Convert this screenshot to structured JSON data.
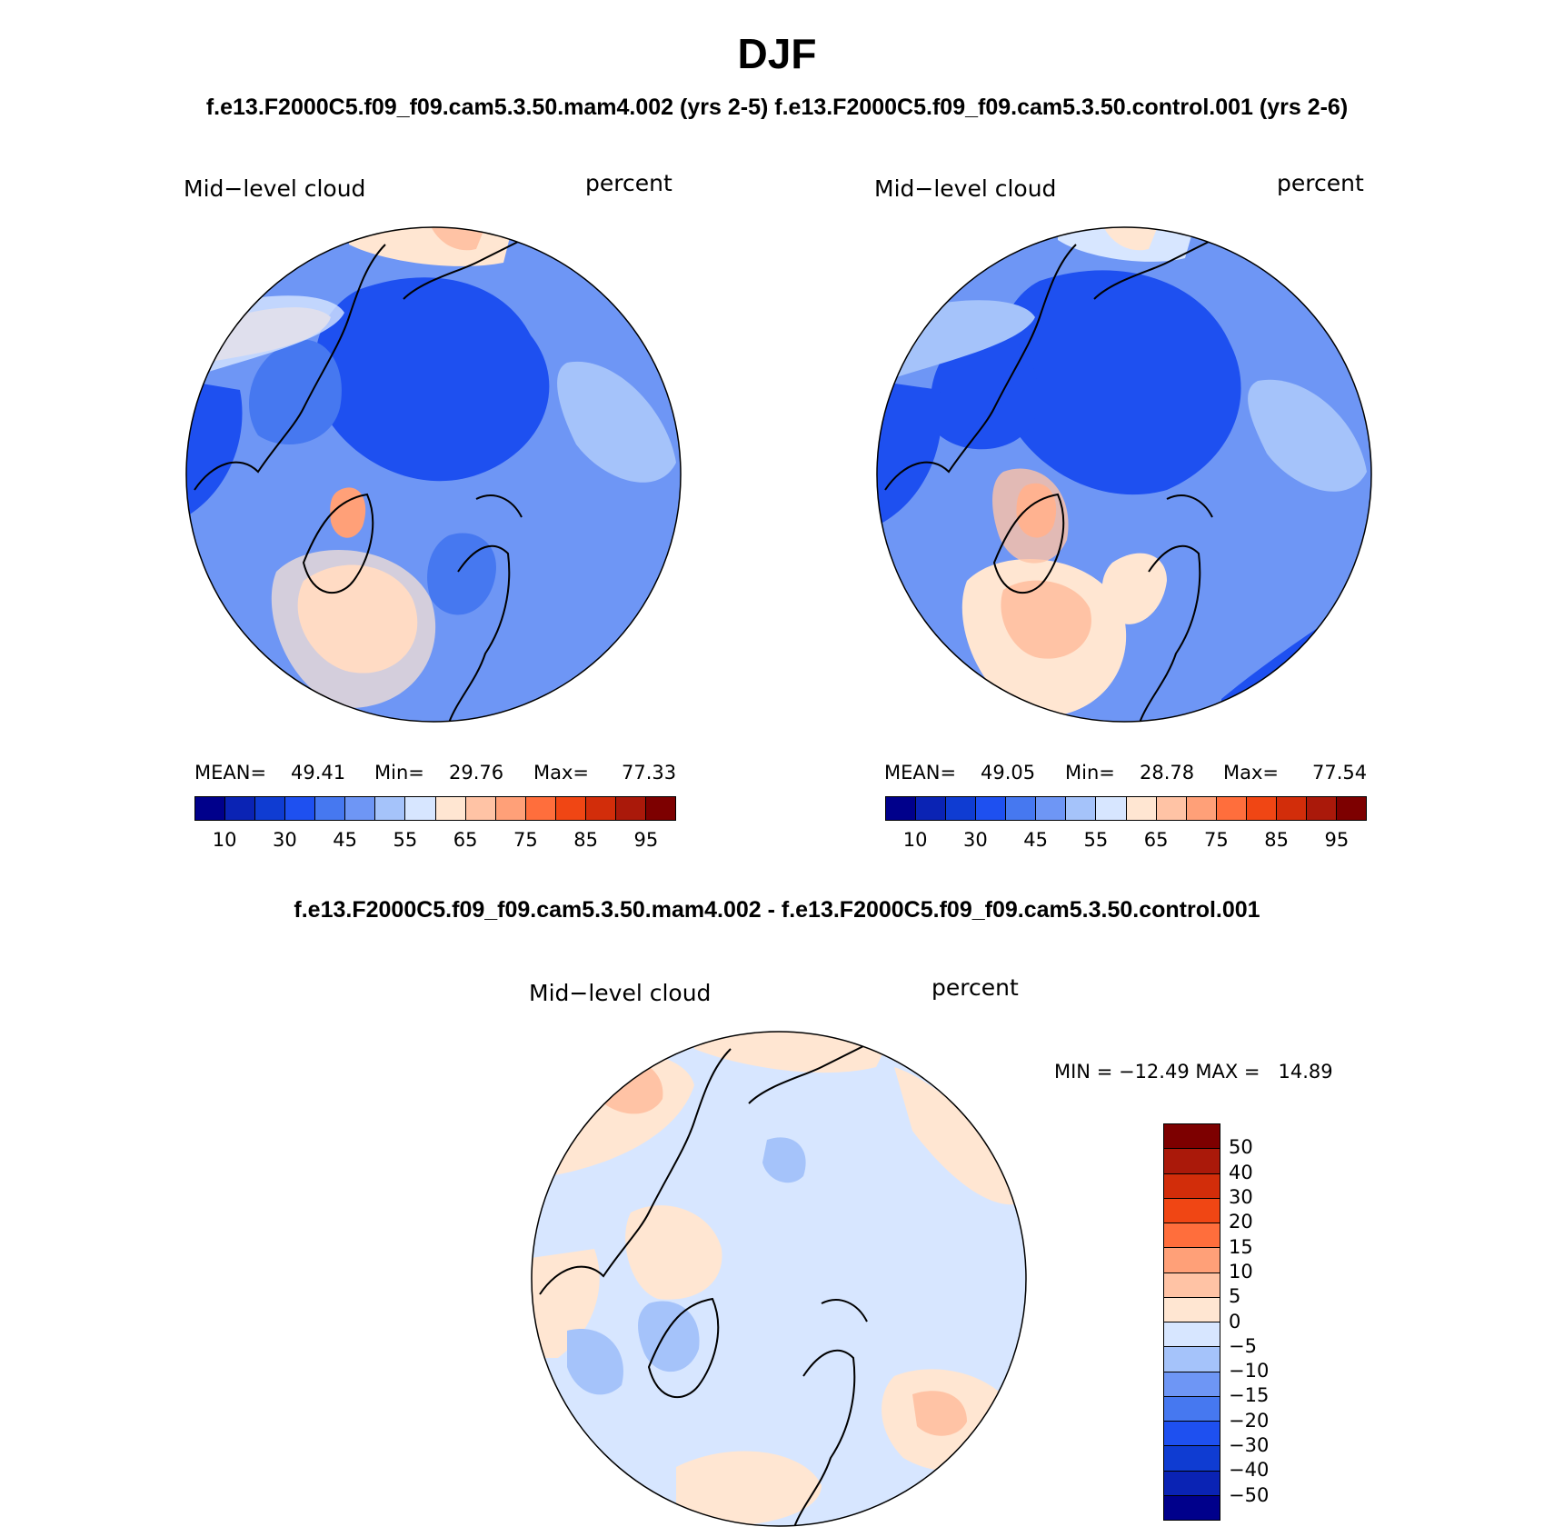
{
  "header": {
    "title": "DJF",
    "subtitle": "f.e13.F2000C5.f09_f09.cam5.3.50.mam4.002 (yrs 2-5) f.e13.F2000C5.f09_f09.cam5.3.50.control.001 (yrs 2-6)",
    "diff_title": "f.e13.F2000C5.f09_f09.cam5.3.50.mam4.002 - f.e13.F2000C5.f09_f09.cam5.3.50.control.001"
  },
  "panels": [
    {
      "variable": "Mid−level cloud",
      "units": "percent",
      "stats": {
        "mean_label": "MEAN=",
        "mean": "49.41",
        "min_label": "Min=",
        "min": "29.76",
        "max_label": "Max=",
        "max": "77.33"
      }
    },
    {
      "variable": "Mid−level cloud",
      "units": "percent",
      "stats": {
        "mean_label": "MEAN=",
        "mean": "49.05",
        "min_label": "Min=",
        "min": "28.78",
        "max_label": "Max=",
        "max": "77.54"
      }
    },
    {
      "variable": "Mid−level cloud",
      "units": "percent",
      "stats_text": "MIN = −12.49 MAX =   14.89"
    }
  ],
  "colorbar_abs": {
    "colors": [
      "#00008b",
      "#0a23b4",
      "#0f3cd2",
      "#1e50f0",
      "#4678f0",
      "#6e96f5",
      "#a5c3fa",
      "#d7e6ff",
      "#ffe6d2",
      "#ffc3a5",
      "#ffa078",
      "#ff6e3c",
      "#f04614",
      "#d22d0a",
      "#aa190a",
      "#7d0000"
    ],
    "labels": [
      "10",
      "30",
      "45",
      "55",
      "65",
      "75",
      "85",
      "95"
    ]
  },
  "colorbar_diff": {
    "colors": [
      "#7d0000",
      "#aa190a",
      "#d22d0a",
      "#f04614",
      "#ff6e3c",
      "#ffa078",
      "#ffc3a5",
      "#ffe6d2",
      "#d7e6ff",
      "#a5c3fa",
      "#6e96f5",
      "#4678f0",
      "#1e50f0",
      "#0f3cd2",
      "#0a23b4",
      "#00008b"
    ],
    "labels": [
      "50",
      "40",
      "30",
      "20",
      "15",
      "10",
      "5",
      "0",
      "−5",
      "−10",
      "−15",
      "−20",
      "−30",
      "−40",
      "−50"
    ]
  },
  "map_fill": {
    "abs_base": "#6e96f5",
    "diff_base": "#d7e6ff",
    "coast": "#000000"
  }
}
